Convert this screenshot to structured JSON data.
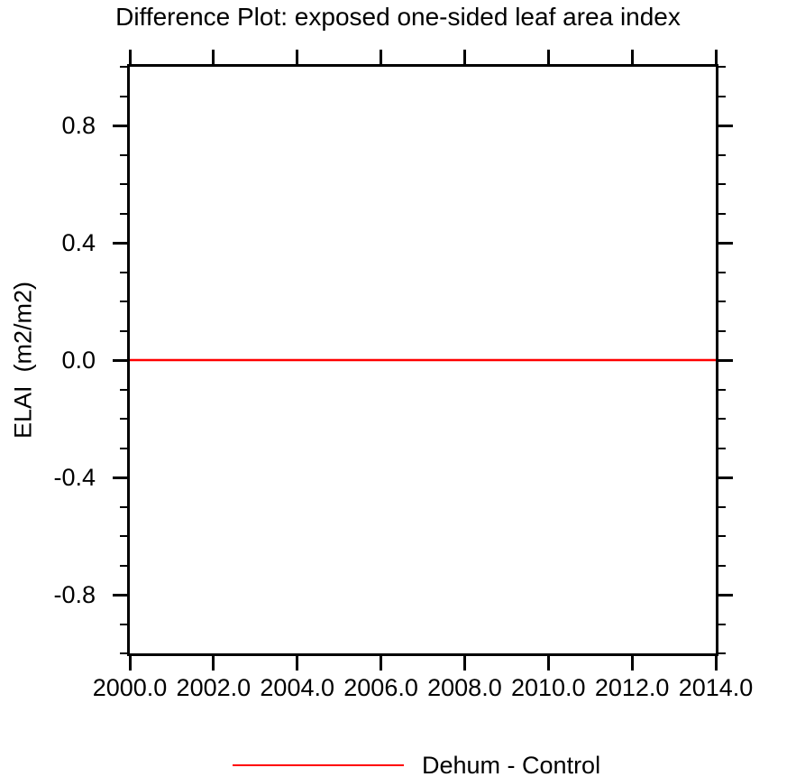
{
  "chart_data": {
    "type": "line",
    "title": "Difference Plot: exposed one-sided leaf area index",
    "xlabel": "",
    "ylabel": "ELAI  (m2/m2)",
    "xlim": [
      2000.0,
      2014.0
    ],
    "ylim": [
      -1.0,
      1.0
    ],
    "x_ticks": [
      2000.0,
      2002.0,
      2004.0,
      2006.0,
      2008.0,
      2010.0,
      2012.0,
      2014.0
    ],
    "x_tick_labels": [
      "2000.0",
      "2002.0",
      "2004.0",
      "2006.0",
      "2008.0",
      "2010.0",
      "2012.0",
      "2014.0"
    ],
    "y_major_ticks": [
      0.8,
      0.4,
      0.0,
      -0.4,
      -0.8
    ],
    "y_major_tick_labels": [
      "0.8",
      "0.4",
      "0.0",
      "-0.4",
      "-0.8"
    ],
    "y_minor_tick_step": 0.1,
    "grid": false,
    "legend_position": "bottom-center",
    "series": [
      {
        "name": "Dehum - Control",
        "color": "#ff0000",
        "x": [
          2000.0,
          2002.0,
          2004.0,
          2006.0,
          2008.0,
          2010.0,
          2012.0,
          2014.0
        ],
        "y": [
          0.0,
          0.0,
          0.0,
          0.0,
          0.0,
          0.0,
          0.0,
          0.0
        ]
      }
    ]
  },
  "legend": {
    "entries": [
      {
        "label": "Dehum - Control",
        "color": "#ff0000"
      }
    ]
  },
  "colors": {
    "axis": "#000000",
    "background": "#ffffff",
    "series_red": "#ff0000"
  }
}
